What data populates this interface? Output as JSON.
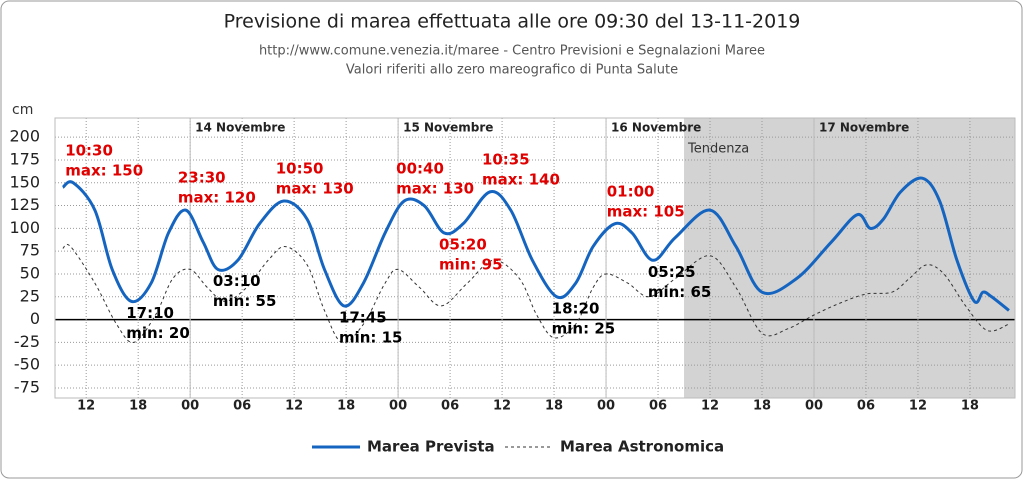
{
  "chart_data": {
    "type": "line",
    "title": "Previsione di marea effettuata alle ore 09:30 del 13-11-2019",
    "subtitle": [
      "http://www.comune.venezia.it/maree - Centro Previsioni e Segnalazioni Maree",
      "Valori riferiti allo zero mareografico di Punta Salute"
    ],
    "y_label": "cm",
    "xlim": [
      8.4,
      119.2
    ],
    "xticks": [
      {
        "value": 12,
        "label": "12"
      },
      {
        "value": 18,
        "label": "18"
      },
      {
        "value": 24,
        "label": "00"
      },
      {
        "value": 30,
        "label": "06"
      },
      {
        "value": 36,
        "label": "12"
      },
      {
        "value": 42,
        "label": "18"
      },
      {
        "value": 48,
        "label": "00"
      },
      {
        "value": 54,
        "label": "06"
      },
      {
        "value": 60,
        "label": "12"
      },
      {
        "value": 66,
        "label": "18"
      },
      {
        "value": 72,
        "label": "00"
      },
      {
        "value": 78,
        "label": "06"
      },
      {
        "value": 84,
        "label": "12"
      },
      {
        "value": 90,
        "label": "18"
      },
      {
        "value": 96,
        "label": "00"
      },
      {
        "value": 102,
        "label": "06"
      },
      {
        "value": 108,
        "label": "12"
      },
      {
        "value": 114,
        "label": "18"
      }
    ],
    "ylim": [
      -86,
      221
    ],
    "yticks": [
      200,
      175,
      150,
      125,
      100,
      75,
      50,
      25,
      0,
      -25,
      -50,
      -75
    ],
    "grid": true,
    "days": [
      {
        "x": 24,
        "label": "14 Novembre"
      },
      {
        "x": 48,
        "label": "15 Novembre"
      },
      {
        "x": 72,
        "label": "16 Novembre"
      },
      {
        "x": 96,
        "label": "17 Novembre"
      }
    ],
    "trend": {
      "from": 81,
      "label": "Tendenza",
      "color": "#d3d3d3"
    },
    "series": [
      {
        "name": "Marea Prevista",
        "color": "#1565c0",
        "dash": false,
        "x": [
          9.3,
          10.5,
          13,
          15,
          17.2,
          19.5,
          21.5,
          23.5,
          25.5,
          27.2,
          29.5,
          32,
          34.8,
          37.5,
          39.5,
          41.75,
          44,
          46.5,
          48.7,
          51,
          53.3,
          55.5,
          58.6,
          61,
          63.5,
          66.3,
          68.5,
          70.5,
          73,
          75,
          77.4,
          80,
          84,
          87,
          90,
          94,
          98,
          101,
          102.5,
          104,
          106,
          108.5,
          110.5,
          112.5,
          114.5,
          115.5,
          116.5,
          118.5
        ],
        "values": [
          145,
          150,
          120,
          55,
          20,
          40,
          95,
          120,
          85,
          55,
          65,
          105,
          130,
          110,
          55,
          15,
          40,
          95,
          130,
          125,
          95,
          105,
          140,
          120,
          65,
          25,
          40,
          80,
          105,
          95,
          65,
          90,
          120,
          80,
          30,
          45,
          85,
          115,
          100,
          110,
          140,
          155,
          130,
          65,
          20,
          30,
          25,
          10
        ]
      },
      {
        "name": "Marea Astronomica",
        "color": "#333333",
        "dash": true,
        "x": [
          9.3,
          10.2,
          13,
          15.5,
          17.5,
          20,
          22,
          24,
          26,
          28,
          30.5,
          33,
          35,
          37.5,
          39.5,
          41.5,
          44,
          46.5,
          48,
          50.5,
          53,
          56,
          59,
          62,
          64,
          66,
          68.5,
          70.5,
          72,
          74.5,
          77,
          80,
          84,
          87,
          90,
          93,
          96,
          99,
          102,
          105,
          107,
          109,
          111,
          113.5,
          116,
          118.5
        ],
        "values": [
          78,
          80,
          40,
          -5,
          -25,
          5,
          45,
          55,
          35,
          20,
          35,
          65,
          80,
          60,
          10,
          -25,
          -5,
          40,
          55,
          35,
          15,
          40,
          65,
          45,
          5,
          -20,
          -5,
          35,
          50,
          40,
          25,
          45,
          70,
          35,
          -15,
          -10,
          5,
          18,
          28,
          30,
          45,
          60,
          50,
          15,
          -12,
          -5
        ]
      }
    ],
    "annotations": [
      {
        "x": 10.5,
        "y": 150,
        "time": "10:30",
        "label": "max: 150",
        "color": "#e00000",
        "pos": "above"
      },
      {
        "x": 17.2,
        "y": 20,
        "time": "17:10",
        "label": "min: 20",
        "color": "#000000",
        "pos": "below"
      },
      {
        "x": 23.5,
        "y": 120,
        "time": "23:30",
        "label": "max: 120",
        "color": "#e00000",
        "pos": "above"
      },
      {
        "x": 27.2,
        "y": 55,
        "time": "03:10",
        "label": "min: 55",
        "color": "#000000",
        "pos": "below"
      },
      {
        "x": 34.8,
        "y": 130,
        "time": "10:50",
        "label": "max: 130",
        "color": "#e00000",
        "pos": "above"
      },
      {
        "x": 41.75,
        "y": 15,
        "time": "17:45",
        "label": "min: 15",
        "color": "#000000",
        "pos": "below"
      },
      {
        "x": 48.7,
        "y": 130,
        "time": "00:40",
        "label": "max: 130",
        "color": "#e00000",
        "pos": "above"
      },
      {
        "x": 53.3,
        "y": 95,
        "time": "05:20",
        "label": "min: 95",
        "color": "#e00000",
        "pos": "below"
      },
      {
        "x": 58.6,
        "y": 140,
        "time": "10:35",
        "label": "max: 140",
        "color": "#e00000",
        "pos": "above"
      },
      {
        "x": 66.3,
        "y": 25,
        "time": "18:20",
        "label": "min: 25",
        "color": "#000000",
        "pos": "below"
      },
      {
        "x": 73,
        "y": 105,
        "time": "01:00",
        "label": "max: 105",
        "color": "#e00000",
        "pos": "above"
      },
      {
        "x": 77.4,
        "y": 65,
        "time": "05:25",
        "label": "min: 65",
        "color": "#000000",
        "pos": "below"
      }
    ]
  }
}
